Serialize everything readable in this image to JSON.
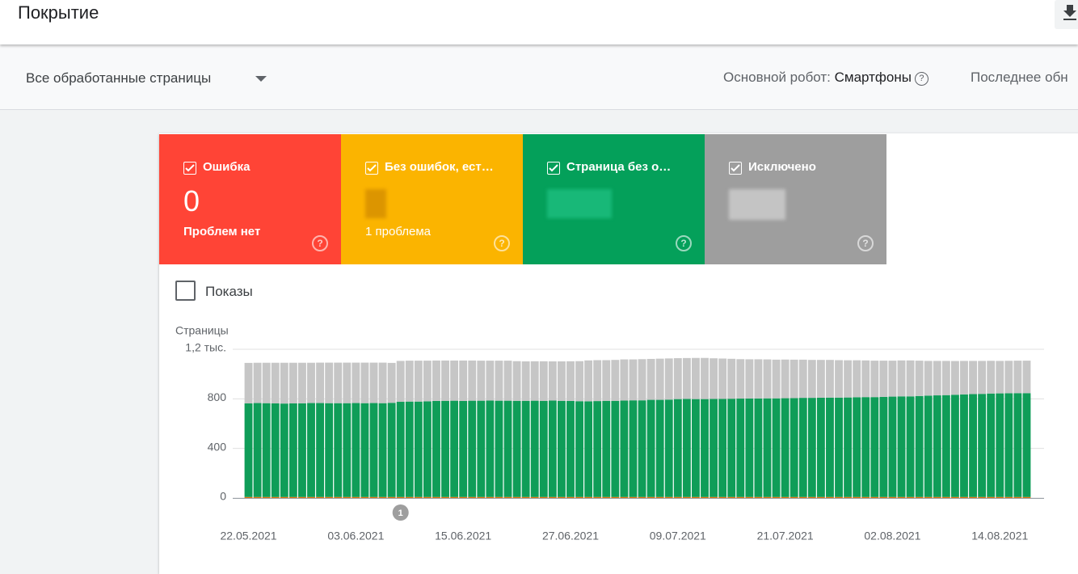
{
  "header": {
    "title": "Покрытие"
  },
  "toolbar": {
    "filter": "Все обработанные страницы",
    "robot_label": "Основной робот:",
    "robot_value": "Смартфоны",
    "last_updated": "Последнее обн"
  },
  "cards": [
    {
      "label": "Ошибка",
      "value": 0,
      "note": "Проблем нет"
    },
    {
      "label": "Без ошибок, ест…",
      "note": "1 проблема"
    },
    {
      "label": "Страница без о…"
    },
    {
      "label": "Исключено"
    }
  ],
  "impressions_toggle": "Показы",
  "chart_data": {
    "type": "stacked-bar",
    "y_label": "Страницы",
    "categories": [
      "22.05.2021",
      null,
      null,
      null,
      null,
      null,
      null,
      null,
      null,
      null,
      null,
      null,
      "03.06.2021",
      null,
      null,
      null,
      null,
      null,
      null,
      null,
      null,
      null,
      null,
      null,
      "15.06.2021",
      null,
      null,
      null,
      null,
      null,
      null,
      null,
      null,
      null,
      null,
      null,
      "27.06.2021",
      null,
      null,
      null,
      null,
      null,
      null,
      null,
      null,
      null,
      null,
      null,
      "09.07.2021",
      null,
      null,
      null,
      null,
      null,
      null,
      null,
      null,
      null,
      null,
      null,
      "21.07.2021",
      null,
      null,
      null,
      null,
      null,
      null,
      null,
      null,
      null,
      null,
      null,
      "02.08.2021",
      null,
      null,
      null,
      null,
      null,
      null,
      null,
      null,
      null,
      null,
      null,
      "14.08.2021",
      null,
      null,
      null
    ],
    "series": [
      {
        "name": "Ошибка",
        "color": "#d93025",
        "values": [
          0,
          0,
          0,
          0,
          0,
          0,
          0,
          0,
          0,
          0,
          0,
          0,
          0,
          0,
          0,
          0,
          0,
          0,
          0,
          0,
          0,
          0,
          0,
          0,
          0,
          0,
          0,
          0,
          0,
          0,
          0,
          0,
          0,
          0,
          0,
          0,
          0,
          0,
          0,
          0,
          0,
          0,
          0,
          0,
          0,
          0,
          0,
          0,
          0,
          0,
          0,
          0,
          0,
          0,
          0,
          0,
          0,
          0,
          0,
          0,
          0,
          0,
          0,
          0,
          0,
          0,
          0,
          0,
          0,
          0,
          0,
          0,
          0,
          0,
          0,
          0,
          0,
          0,
          0,
          0,
          0,
          0,
          0,
          0,
          0,
          0,
          0,
          0
        ]
      },
      {
        "name": "Без ошибок, ест…",
        "color": "#e8710a",
        "values": [
          8,
          8,
          8,
          8,
          8,
          8,
          8,
          8,
          8,
          8,
          8,
          8,
          8,
          8,
          8,
          8,
          8,
          8,
          8,
          8,
          8,
          8,
          8,
          8,
          8,
          8,
          8,
          8,
          8,
          8,
          8,
          8,
          8,
          8,
          8,
          8,
          8,
          8,
          8,
          8,
          8,
          8,
          8,
          8,
          8,
          8,
          8,
          8,
          8,
          8,
          8,
          8,
          8,
          8,
          8,
          8,
          8,
          8,
          8,
          8,
          8,
          8,
          8,
          8,
          8,
          8,
          8,
          8,
          8,
          8,
          8,
          8,
          8,
          8,
          8,
          8,
          8,
          8,
          8,
          8,
          8,
          8,
          8,
          8,
          8,
          8,
          8,
          8
        ]
      },
      {
        "name": "Страница без о…",
        "color": "#0f9d58",
        "values": [
          755,
          758,
          757,
          755,
          754,
          755,
          756,
          758,
          758,
          757,
          757,
          757,
          758,
          757,
          758,
          757,
          760,
          768,
          770,
          770,
          772,
          775,
          776,
          777,
          775,
          777,
          777,
          778,
          777,
          777,
          776,
          776,
          777,
          776,
          778,
          776,
          775,
          773,
          772,
          774,
          776,
          776,
          778,
          780,
          780,
          784,
          784,
          786,
          790,
          791,
          790,
          790,
          791,
          792,
          793,
          794,
          795,
          795,
          796,
          796,
          797,
          798,
          800,
          800,
          801,
          802,
          802,
          803,
          805,
          806,
          806,
          808,
          810,
          812,
          812,
          815,
          818,
          820,
          822,
          825,
          828,
          830,
          832,
          835,
          836,
          837,
          838,
          838
        ]
      },
      {
        "name": "Исключено",
        "color": "#c6c6c6",
        "values": [
          327,
          325,
          326,
          328,
          329,
          328,
          327,
          325,
          326,
          327,
          327,
          327,
          326,
          327,
          326,
          327,
          322,
          330,
          330,
          330,
          328,
          326,
          325,
          324,
          326,
          324,
          323,
          322,
          323,
          323,
          320,
          318,
          318,
          319,
          316,
          318,
          320,
          323,
          330,
          330,
          328,
          330,
          332,
          330,
          332,
          330,
          332,
          332,
          330,
          330,
          332,
          332,
          328,
          325,
          322,
          318,
          316,
          316,
          314,
          312,
          312,
          310,
          308,
          306,
          305,
          304,
          302,
          300,
          298,
          296,
          294,
          292,
          290,
          290,
          290,
          285,
          280,
          278,
          276,
          272,
          270,
          268,
          266,
          264,
          262,
          262,
          262,
          262
        ]
      }
    ],
    "annotations": [
      "1"
    ],
    "ylim": [
      0,
      1200
    ],
    "yticks": [
      0,
      400,
      800,
      {
        "value": 1200,
        "label": "1,2 тыс."
      }
    ],
    "grid": true
  }
}
